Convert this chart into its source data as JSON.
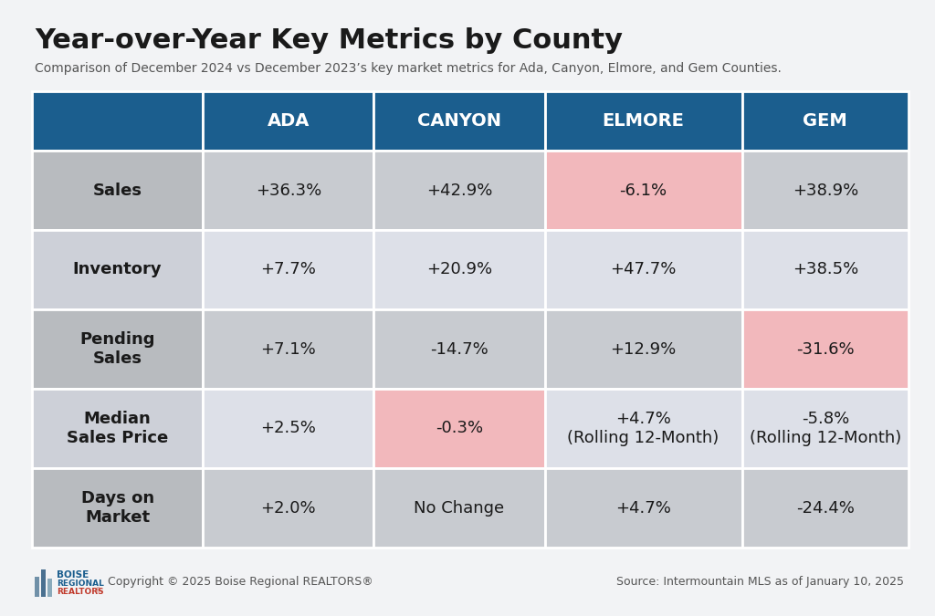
{
  "title": "Year-over-Year Key Metrics by County",
  "subtitle": "Comparison of December 2024 vs December 2023’s key market metrics for Ada, Canyon, Elmore, and Gem Counties.",
  "columns": [
    "",
    "ADA",
    "CANYON",
    "ELMORE",
    "GEM"
  ],
  "rows": [
    {
      "label": "Sales",
      "values": [
        "+36.3%",
        "+42.9%",
        "-6.1%",
        "+38.9%"
      ],
      "highlights": [
        false,
        false,
        true,
        false
      ]
    },
    {
      "label": "Inventory",
      "values": [
        "+7.7%",
        "+20.9%",
        "+47.7%",
        "+38.5%"
      ],
      "highlights": [
        false,
        false,
        false,
        false
      ]
    },
    {
      "label": "Pending\nSales",
      "values": [
        "+7.1%",
        "-14.7%",
        "+12.9%",
        "-31.6%"
      ],
      "highlights": [
        false,
        false,
        false,
        true
      ]
    },
    {
      "label": "Median\nSales Price",
      "values": [
        "+2.5%",
        "-0.3%",
        "+4.7%\n(Rolling 12-Month)",
        "-5.8%\n(Rolling 12-Month)"
      ],
      "highlights": [
        false,
        true,
        false,
        false
      ]
    },
    {
      "label": "Days on\nMarket",
      "values": [
        "+2.0%",
        "No Change",
        "+4.7%",
        "-24.4%"
      ],
      "highlights": [
        false,
        false,
        false,
        false
      ]
    }
  ],
  "header_bg": "#1b5e8e",
  "header_text": "#ffffff",
  "row_bg_odd": "#c8cbd0",
  "row_bg_even": "#dde0e8",
  "label_col_bg_odd": "#b8bbbf",
  "label_col_bg_even": "#cdd0d8",
  "highlight_bg": "#f2b8bc",
  "border_color": "#ffffff",
  "title_color": "#1a1a1a",
  "subtitle_color": "#555555",
  "footer_text": "Copyright © 2025 Boise Regional REALTORS®",
  "source_text": "Source: Intermountain MLS as of January 10, 2025",
  "page_bg": "#f2f3f5"
}
